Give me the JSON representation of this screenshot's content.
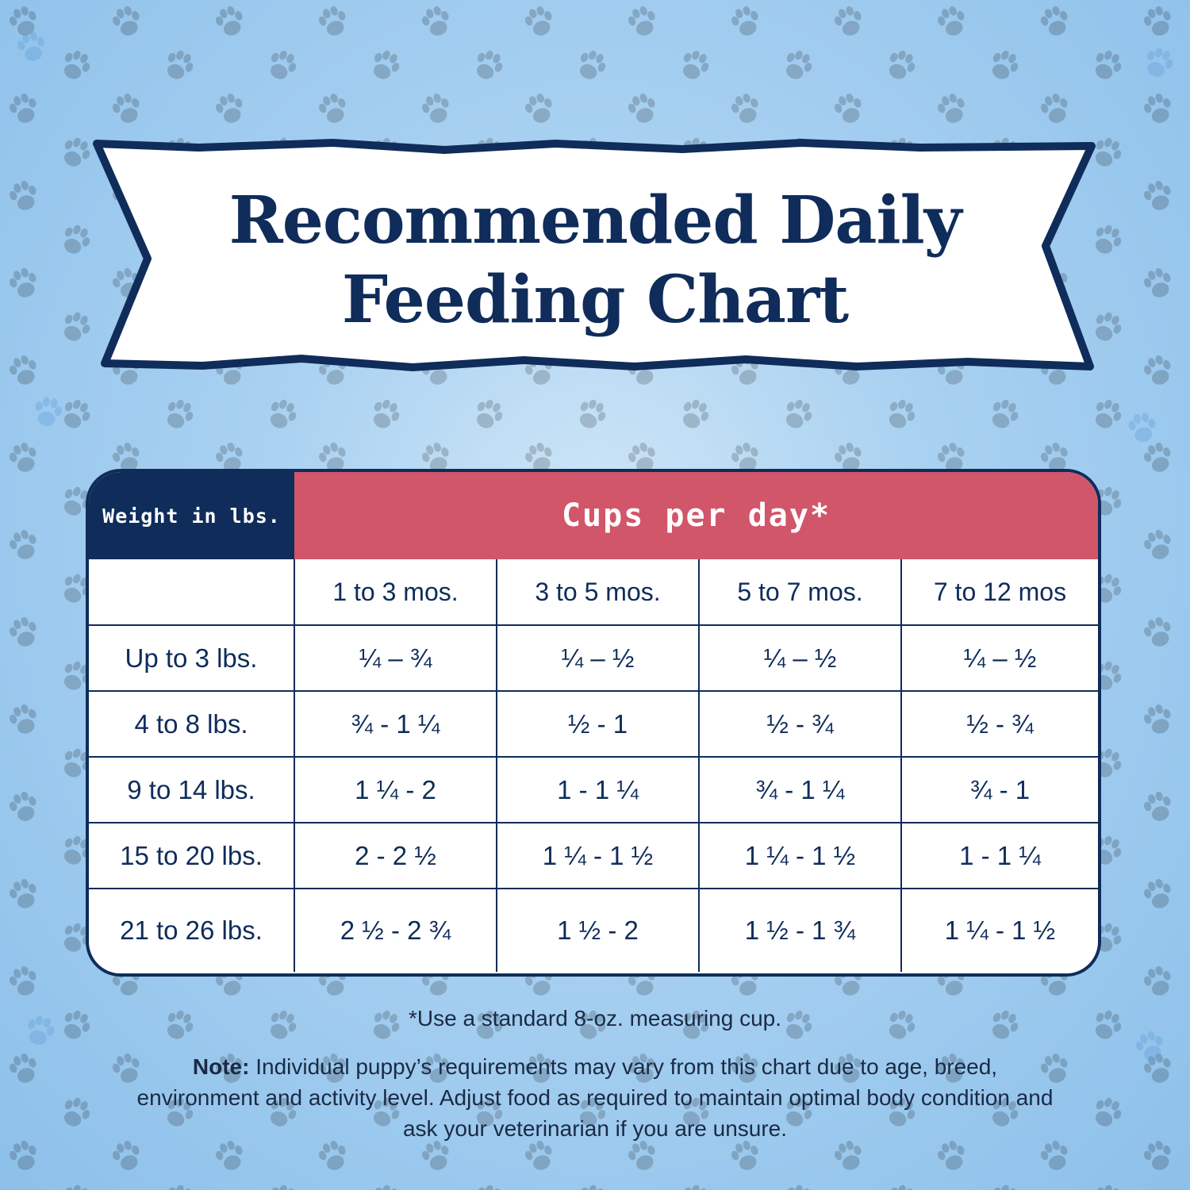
{
  "title": {
    "line1": "Recommended Daily",
    "line2": "Feeding Chart"
  },
  "table": {
    "weight_header": "Weight in lbs.",
    "cups_header": "Cups per day*",
    "age_columns": [
      "1 to 3 mos.",
      "3 to 5 mos.",
      "5 to 7 mos.",
      "7 to 12 mos"
    ],
    "rows": [
      {
        "weight": "Up to 3 lbs.",
        "cups": [
          "¼ – ¾",
          "¼ – ½",
          "¼ – ½",
          "¼ – ½"
        ]
      },
      {
        "weight": "4 to 8 lbs.",
        "cups": [
          "¾ - 1 ¼",
          "½ - 1",
          "½ - ¾",
          "½ - ¾"
        ]
      },
      {
        "weight": "9 to 14 lbs.",
        "cups": [
          "1 ¼ - 2",
          "1 - 1 ¼",
          "¾ - 1 ¼",
          "¾ - 1"
        ]
      },
      {
        "weight": "15 to 20 lbs.",
        "cups": [
          "2 - 2 ½",
          "1 ¼ - 1 ½",
          "1 ¼ - 1 ½",
          "1 - 1 ¼"
        ]
      },
      {
        "weight": "21 to 26 lbs.",
        "cups": [
          "2 ½ - 2 ¾",
          "1 ½ - 2",
          "1 ½ - 1 ¾",
          "1 ¼ - 1 ½"
        ]
      }
    ]
  },
  "footnote": "*Use a standard 8-oz. measuring cup.",
  "note": {
    "label": "Note:",
    "text": " Individual puppy’s requirements may vary from this chart due to age, breed, environment and activity level. Adjust food as required to maintain optimal body condition and ask  your veterinarian if you are unsure."
  },
  "colors": {
    "navy": "#0f2c5a",
    "rose": "#d1566a",
    "sky": "#a9d1f1"
  }
}
